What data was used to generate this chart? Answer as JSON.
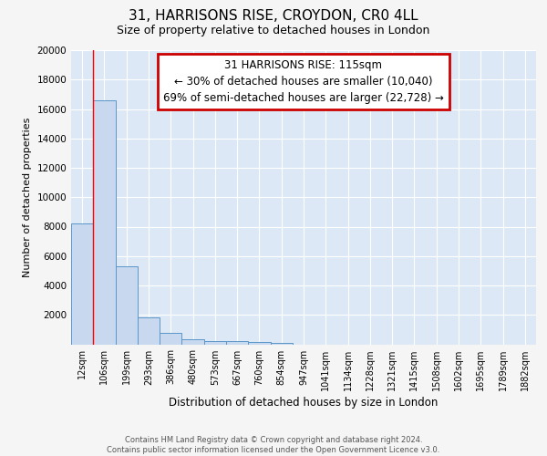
{
  "title": "31, HARRISONS RISE, CROYDON, CR0 4LL",
  "subtitle": "Size of property relative to detached houses in London",
  "xlabel": "Distribution of detached houses by size in London",
  "ylabel": "Number of detached properties",
  "footer_line1": "Contains HM Land Registry data © Crown copyright and database right 2024.",
  "footer_line2": "Contains public sector information licensed under the Open Government Licence v3.0.",
  "bar_labels": [
    "12sqm",
    "106sqm",
    "199sqm",
    "293sqm",
    "386sqm",
    "480sqm",
    "573sqm",
    "667sqm",
    "760sqm",
    "854sqm",
    "947sqm",
    "1041sqm",
    "1134sqm",
    "1228sqm",
    "1321sqm",
    "1415sqm",
    "1508sqm",
    "1602sqm",
    "1695sqm",
    "1789sqm",
    "1882sqm"
  ],
  "bar_values": [
    8200,
    16600,
    5300,
    1850,
    750,
    330,
    240,
    210,
    170,
    110,
    0,
    0,
    0,
    0,
    0,
    0,
    0,
    0,
    0,
    0,
    0
  ],
  "bar_color": "#c8d8ee",
  "bar_edge_color": "#5a96c8",
  "background_color": "#dce8f5",
  "fig_background_color": "#f5f5f5",
  "grid_color": "#ffffff",
  "red_line_x": 1.0,
  "annotation_text": "31 HARRISONS RISE: 115sqm\n← 30% of detached houses are smaller (10,040)\n69% of semi-detached houses are larger (22,728) →",
  "annotation_box_color": "#ffffff",
  "annotation_edge_color": "#cc0000",
  "ylim": [
    0,
    20000
  ],
  "yticks": [
    0,
    2000,
    4000,
    6000,
    8000,
    10000,
    12000,
    14000,
    16000,
    18000,
    20000
  ]
}
